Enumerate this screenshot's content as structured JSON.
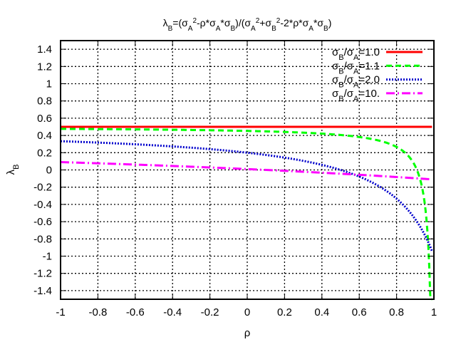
{
  "chart_data": {
    "type": "line",
    "title_parts": [
      {
        "t": "λ"
      },
      {
        "t": "B",
        "sub": true
      },
      {
        "t": "=(σ"
      },
      {
        "t": "A",
        "sub": true
      },
      {
        "t": "2",
        "sup": true
      },
      {
        "t": "-ρ*σ"
      },
      {
        "t": "A",
        "sub": true
      },
      {
        "t": "*σ"
      },
      {
        "t": "B",
        "sub": true
      },
      {
        "t": ")/(σ"
      },
      {
        "t": "A",
        "sub": true
      },
      {
        "t": "2",
        "sup": true
      },
      {
        "t": "+σ"
      },
      {
        "t": "B",
        "sub": true
      },
      {
        "t": "2",
        "sup": true
      },
      {
        "t": "-2*ρ*σ"
      },
      {
        "t": "A",
        "sub": true
      },
      {
        "t": "*σ"
      },
      {
        "t": "B",
        "sub": true
      },
      {
        "t": ")"
      }
    ],
    "xlabel": "ρ",
    "ylabel_parts": [
      {
        "t": "λ"
      },
      {
        "t": "B",
        "sub": true
      }
    ],
    "xlim": [
      -1,
      1
    ],
    "ylim": [
      -1.5,
      1.5
    ],
    "x_ticks": [
      -1,
      -0.8,
      -0.6,
      -0.4,
      -0.2,
      0,
      0.2,
      0.4,
      0.6,
      0.8,
      1
    ],
    "x_tick_labels": [
      "-1",
      "-0.8",
      "-0.6",
      "-0.4",
      "-0.2",
      "0",
      "0.2",
      "0.4",
      "0.6",
      "0.8",
      "1"
    ],
    "y_ticks": [
      -1.4,
      -1.2,
      -1,
      -0.8,
      -0.6,
      -0.4,
      -0.2,
      0,
      0.2,
      0.4,
      0.6,
      0.8,
      1,
      1.2,
      1.4
    ],
    "y_tick_labels": [
      "-1.4",
      "-1.2",
      "-1",
      "-0.8",
      "-0.6",
      "-0.4",
      "-0.2",
      "0",
      "0.2",
      "0.4",
      "0.6",
      "0.8",
      "1",
      "1.2",
      "1.4"
    ],
    "grid": true,
    "legend_position": "top-right",
    "series": [
      {
        "name": "σB/σA=1.0",
        "label_parts": [
          {
            "t": "σ"
          },
          {
            "t": "B",
            "sub": true
          },
          {
            "t": "/σ"
          },
          {
            "t": "A",
            "sub": true
          },
          {
            "t": "=1.0"
          }
        ],
        "ratio": 1.0,
        "color": "#ff0000",
        "style": "solid",
        "x": [
          -1,
          -0.5,
          0,
          0.5,
          0.99
        ],
        "y": [
          0.5,
          0.5,
          0.5,
          0.5,
          0.5
        ]
      },
      {
        "name": "σB/σA=1.1",
        "label_parts": [
          {
            "t": "σ"
          },
          {
            "t": "B",
            "sub": true
          },
          {
            "t": "/σ"
          },
          {
            "t": "A",
            "sub": true
          },
          {
            "t": "=1.1"
          }
        ],
        "ratio": 1.1,
        "color": "#00ff00",
        "style": "dashed",
        "x": [
          -1,
          -0.5,
          0,
          0.5,
          0.8,
          0.9,
          0.95,
          0.97,
          0.98,
          0.99
        ],
        "y": [
          0.476,
          0.469,
          0.453,
          0.398,
          0.28,
          0.143,
          -0.025,
          -0.25,
          -0.53,
          -1.46
        ]
      },
      {
        "name": "σB/σA=2.0",
        "label_parts": [
          {
            "t": "σ"
          },
          {
            "t": "B",
            "sub": true
          },
          {
            "t": "/σ"
          },
          {
            "t": "A",
            "sub": true
          },
          {
            "t": "=2.0"
          }
        ],
        "ratio": 2.0,
        "color": "#0000cc",
        "style": "dotted",
        "x": [
          -1,
          -0.5,
          0,
          0.5,
          0.8,
          0.9,
          0.95,
          0.99
        ],
        "y": [
          0.333,
          0.286,
          0.2,
          0.0,
          -0.3,
          -0.571,
          -0.775,
          -0.98
        ]
      },
      {
        "name": "σB/σA=10.",
        "label_parts": [
          {
            "t": "σ"
          },
          {
            "t": "B",
            "sub": true
          },
          {
            "t": "/σ"
          },
          {
            "t": "A",
            "sub": true
          },
          {
            "t": "=10."
          }
        ],
        "ratio": 10.0,
        "color": "#ff00ff",
        "style": "dashdot",
        "x": [
          -1,
          -0.5,
          0,
          0.5,
          0.99
        ],
        "y": [
          0.091,
          0.048,
          0.0,
          -0.052,
          -0.11
        ]
      }
    ]
  }
}
